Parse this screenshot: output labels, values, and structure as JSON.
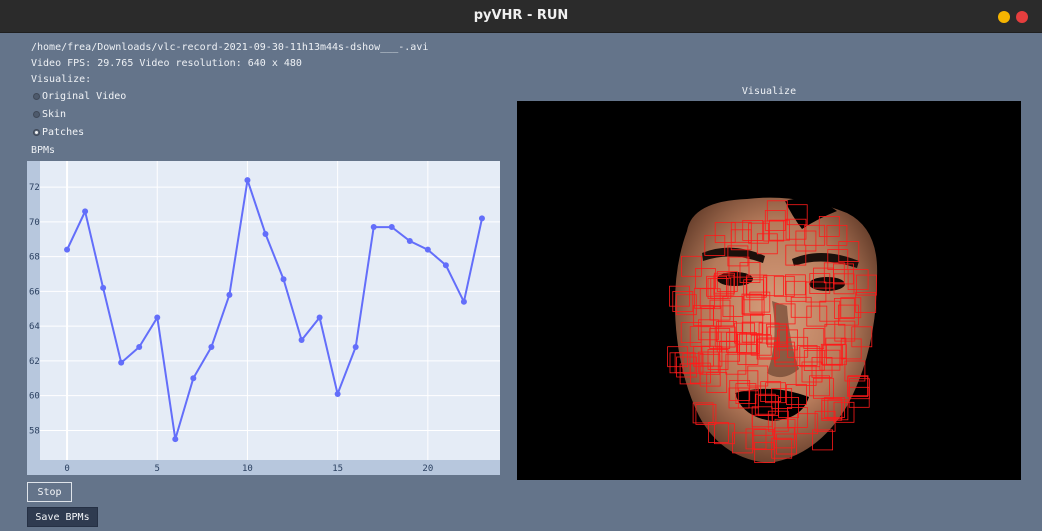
{
  "window": {
    "title": "pyVHR - RUN",
    "controls": [
      {
        "name": "minimize",
        "color": "#f5b400"
      },
      {
        "name": "close",
        "color": "#e53e3e"
      }
    ]
  },
  "info": {
    "file_path": "/home/frea/Downloads/vlc-record-2021-09-30-11h13m44s-dshow___-.avi",
    "fps_line": "Video FPS: 29.765  Video resolution: 640 x 480",
    "visualize_label": "Visualize:"
  },
  "visualize_options": [
    {
      "label": "Original Video",
      "selected": false
    },
    {
      "label": "Skin",
      "selected": false
    },
    {
      "label": "Patches",
      "selected": true
    }
  ],
  "bpm_label": "BPMs",
  "buttons": {
    "stop": "Stop",
    "save": "Save BPMs"
  },
  "visualize_panel": {
    "label": "Visualize"
  },
  "colors": {
    "plot_bg": "#e5ecf6",
    "plot_frame": "#b7c7dd",
    "line": "#636efa",
    "patch": "#ff0000"
  },
  "chart_data": {
    "type": "line",
    "title": "",
    "xlabel": "",
    "ylabel": "",
    "x": [
      0,
      1,
      2,
      3,
      4,
      5,
      6,
      7,
      8,
      9,
      10,
      11,
      12,
      13,
      14,
      15,
      16,
      17,
      18,
      19,
      20,
      21,
      22,
      23
    ],
    "values": [
      68.4,
      70.6,
      66.2,
      61.9,
      62.8,
      64.5,
      57.5,
      61.0,
      62.8,
      65.8,
      72.4,
      69.3,
      66.7,
      63.2,
      64.5,
      60.1,
      62.8,
      69.7,
      69.7,
      68.9,
      68.4,
      67.5,
      65.4,
      70.2
    ],
    "x_ticks": [
      0,
      5,
      10,
      15,
      20
    ],
    "y_ticks": [
      58,
      60,
      62,
      64,
      66,
      68,
      70,
      72
    ],
    "xlim": [
      -1.5,
      24
    ],
    "ylim": [
      56.3,
      73.5
    ],
    "grid": true
  }
}
